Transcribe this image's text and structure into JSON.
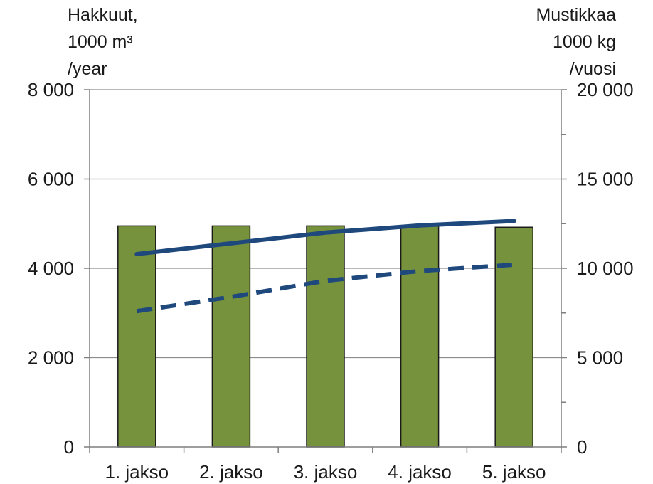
{
  "chart_data": {
    "type": "bar",
    "categories": [
      "1. jakso",
      "2. jakso",
      "3. jakso",
      "4. jakso",
      "5. jakso"
    ],
    "ylabel_left_lines": [
      "Hakkuut,",
      "1000 m³",
      "/year"
    ],
    "ylabel_right_lines": [
      "Mustikkaa",
      "1000 kg",
      "/vuosi"
    ],
    "ylim_left": [
      0,
      8000
    ],
    "ylim_right": [
      0,
      20000
    ],
    "yticks_left": [
      0,
      2000,
      4000,
      6000,
      8000
    ],
    "yticks_left_labels": [
      "0",
      "2 000",
      "4 000",
      "6 000",
      "8 000"
    ],
    "yticks_right": [
      0,
      5000,
      10000,
      15000,
      20000
    ],
    "yticks_right_labels": [
      "0",
      "5 000",
      "10 000",
      "15 000",
      "20 000"
    ],
    "grid": true,
    "bars": {
      "axis": "left",
      "values": [
        4950,
        4950,
        4950,
        4950,
        4920
      ],
      "color": "#76923C",
      "edge_color": "#1a1a1a"
    },
    "lines": [
      {
        "axis": "right",
        "style": "solid",
        "values": [
          10800,
          11400,
          12000,
          12400,
          12650
        ],
        "color": "#1F497D"
      },
      {
        "axis": "right",
        "style": "dashed",
        "values": [
          7600,
          8400,
          9300,
          9850,
          10200
        ],
        "color": "#1F497D"
      }
    ]
  }
}
